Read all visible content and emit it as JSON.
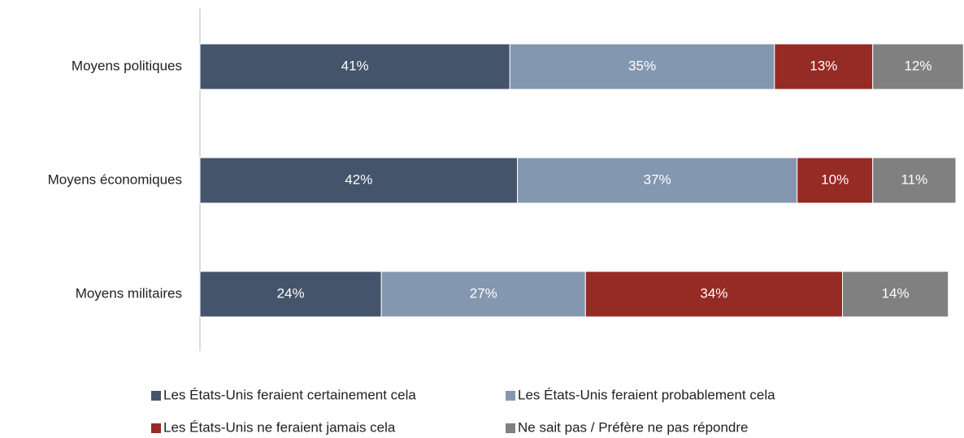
{
  "chart_data": {
    "type": "stacked-barh",
    "categories": [
      "Moyens politiques",
      "Moyens économiques",
      "Moyens militaires"
    ],
    "series": [
      {
        "name": "Les États-Unis feraient certainement cela",
        "color": "#44546a",
        "values": [
          41,
          42,
          24
        ],
        "value_labels": [
          "41%",
          "42%",
          "24%"
        ]
      },
      {
        "name": "Les États-Unis feraient probablement cela",
        "color": "#8497b0",
        "values": [
          35,
          37,
          27
        ],
        "value_labels": [
          "35%",
          "37%",
          "27%"
        ]
      },
      {
        "name": "Les États-Unis ne feraient jamais cela",
        "color": "#962a25",
        "values": [
          13,
          10,
          34
        ],
        "value_labels": [
          "13%",
          "10%",
          "34%"
        ]
      },
      {
        "name": "Ne sait pas / Préfère ne pas répondre",
        "color": "#808080",
        "values": [
          12,
          11,
          14
        ],
        "value_labels": [
          "12%",
          "11%",
          "14%"
        ]
      }
    ],
    "xlim": [
      0,
      100
    ],
    "legend": "bottom"
  }
}
